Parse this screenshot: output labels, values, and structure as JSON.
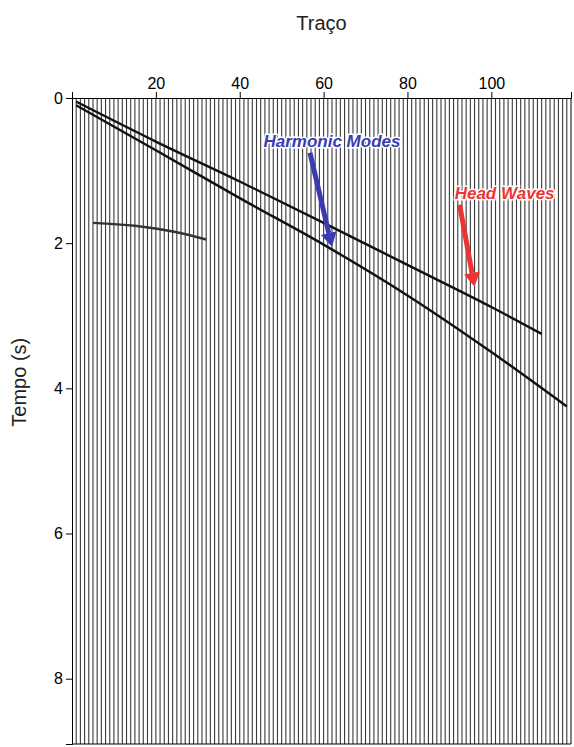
{
  "chart_data": {
    "type": "seismic",
    "x_label": "Traço",
    "y_label": "Tempo (s)",
    "xlim": [
      0,
      119
    ],
    "xticks": [
      20,
      40,
      60,
      80,
      100
    ],
    "ylim": [
      0,
      8.9
    ],
    "yticks": [
      0,
      2,
      4,
      6,
      8
    ],
    "traces": [
      1,
      2,
      3,
      4,
      5,
      6,
      7,
      8,
      9,
      10,
      11,
      12,
      13,
      14,
      15,
      16,
      17,
      18,
      19,
      20,
      21,
      22,
      23,
      24,
      25,
      26,
      27,
      28,
      29,
      30,
      31,
      32,
      33,
      34,
      35,
      36,
      37,
      38,
      39,
      40,
      41,
      42,
      43,
      44,
      45,
      46,
      47,
      48,
      49,
      50,
      51,
      52,
      53,
      54,
      55,
      56,
      57,
      58,
      59,
      60,
      61,
      62,
      63,
      64,
      65,
      66,
      67,
      68,
      69,
      70,
      71,
      72,
      73,
      74,
      75,
      76,
      77,
      78,
      79,
      80,
      81,
      82,
      83,
      84,
      85,
      86,
      87,
      88,
      89,
      90,
      91,
      92,
      93,
      94,
      95,
      96,
      97,
      98,
      99,
      100,
      101,
      102,
      103,
      104,
      105,
      106,
      107,
      108,
      109,
      110,
      111,
      112,
      113,
      114,
      115,
      116,
      117,
      118
    ],
    "series": [
      {
        "color": "#111111",
        "x": [
          1,
          20,
          40,
          60,
          80,
          100,
          112
        ],
        "values": [
          0.05,
          0.6,
          1.15,
          1.72,
          2.3,
          2.88,
          3.25
        ]
      },
      {
        "color": "#111111",
        "x": [
          1,
          20,
          40,
          60,
          80,
          100,
          118
        ],
        "values": [
          0.1,
          0.72,
          1.38,
          2.02,
          2.72,
          3.5,
          4.25
        ]
      },
      {
        "color": "#333333",
        "x": [
          5,
          15,
          25,
          32
        ],
        "values": [
          1.72,
          1.76,
          1.85,
          1.95
        ]
      }
    ],
    "annotations": [
      {
        "text": "Harmonic Modes",
        "color": "#3b3bb0",
        "x": 62,
        "y": 2.05
      },
      {
        "text": "Head Waves",
        "color": "#ee3333",
        "x": 96,
        "y": 2.6
      }
    ]
  }
}
